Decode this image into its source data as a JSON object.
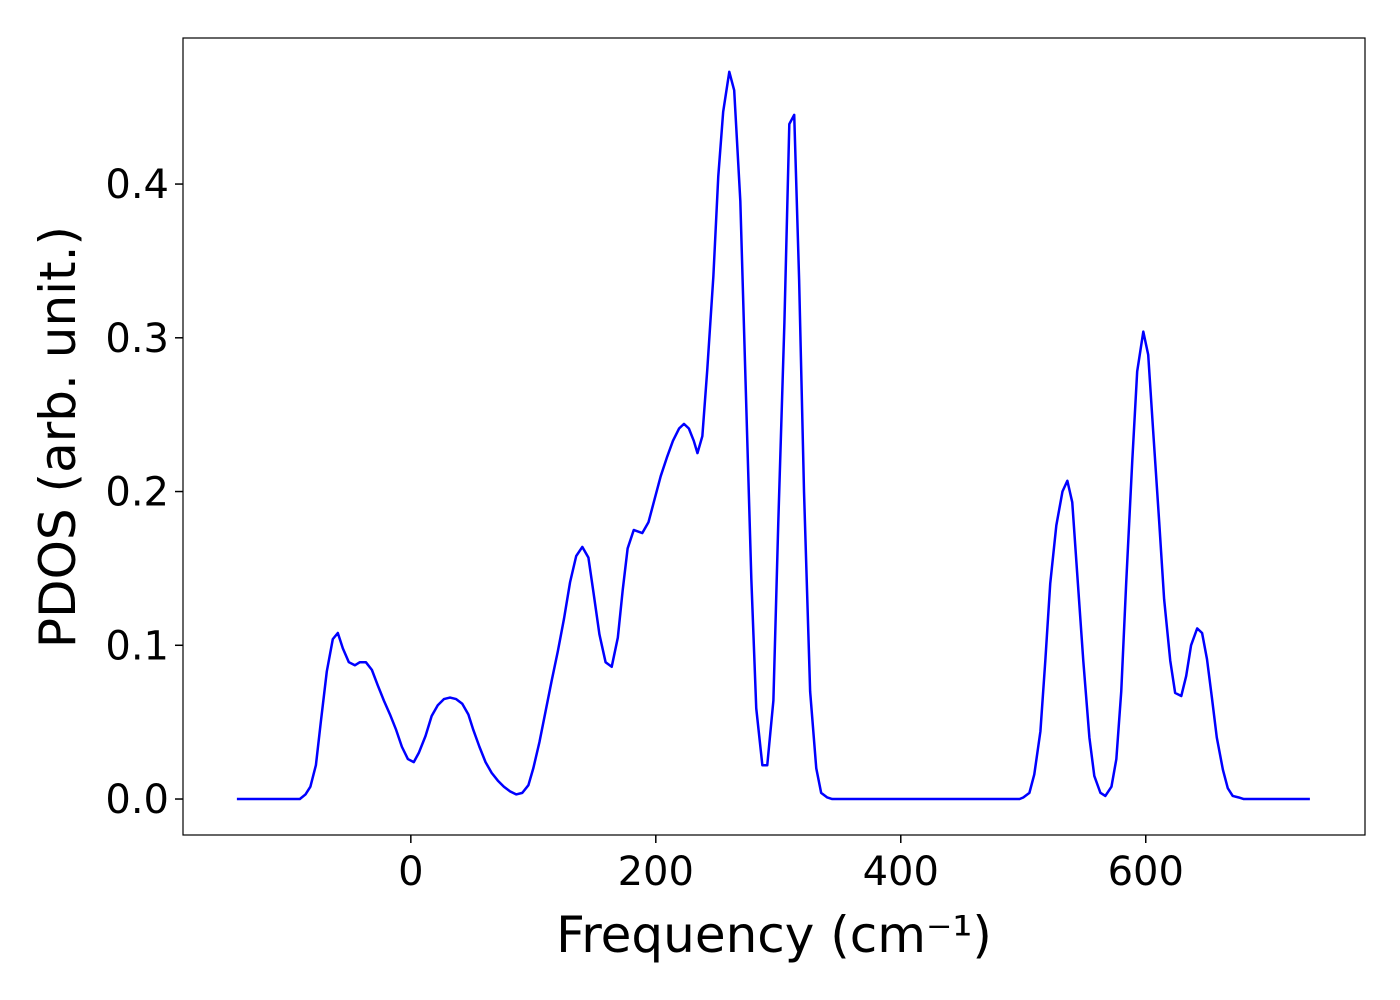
{
  "chart_data": {
    "type": "line",
    "xlabel": "Frequency (cm⁻¹)",
    "ylabel": "PDOS (arb. unit.)",
    "xlim": [
      -186,
      779
    ],
    "ylim": [
      -0.0234,
      0.495
    ],
    "xticks": [
      0,
      200,
      400,
      600
    ],
    "yticks": [
      {
        "value": 0,
        "label": "0.0"
      },
      0.1,
      0.2,
      0.3,
      0.4
    ],
    "series": [
      {
        "color": "#0000ff",
        "x": [
          -142,
          -90.6,
          -86,
          -82,
          -77.5,
          -73.5,
          -68.6,
          -63.7,
          -59.6,
          -55.5,
          -50.6,
          -45.7,
          -41.6,
          -36.7,
          -31.8,
          -27,
          -22,
          -17,
          -12,
          -7.3,
          -2.4,
          2.4,
          6.5,
          12,
          17,
          22,
          27,
          32,
          37,
          42,
          47,
          51,
          56,
          61,
          66,
          71,
          76,
          81,
          86,
          91,
          96,
          100,
          105,
          110,
          115,
          120,
          125,
          130,
          135,
          140,
          145,
          149,
          154,
          159,
          164,
          169,
          173,
          177,
          182,
          189,
          194,
          199,
          204,
          209,
          214,
          219,
          223,
          227,
          231,
          234,
          238,
          242,
          247,
          251,
          255,
          260,
          264,
          269,
          273,
          278,
          282,
          287,
          291,
          296,
          300,
          305,
          309,
          313,
          317,
          321,
          326,
          331,
          335,
          340,
          344,
          497,
          500,
          505,
          509,
          514,
          518,
          522,
          527,
          532,
          536,
          540,
          544,
          549,
          554,
          558,
          563,
          567,
          572,
          576,
          580,
          584,
          589,
          593,
          598,
          602,
          606,
          611,
          615,
          620,
          624,
          629,
          633,
          637,
          642,
          646,
          650,
          654,
          658,
          663,
          667,
          671,
          676,
          680,
          734
        ],
        "values": [
          0,
          0,
          0.003,
          0.008,
          0.022,
          0.05,
          0.083,
          0.104,
          0.108,
          0.098,
          0.089,
          0.087,
          0.089,
          0.089,
          0.084,
          0.074,
          0.064,
          0.055,
          0.045,
          0.034,
          0.026,
          0.024,
          0.03,
          0.041,
          0.054,
          0.061,
          0.065,
          0.066,
          0.065,
          0.062,
          0.055,
          0.045,
          0.034,
          0.024,
          0.017,
          0.012,
          0.008,
          0.005,
          0.003,
          0.004,
          0.009,
          0.02,
          0.037,
          0.057,
          0.077,
          0.096,
          0.117,
          0.141,
          0.158,
          0.164,
          0.157,
          0.135,
          0.107,
          0.089,
          0.086,
          0.105,
          0.136,
          0.163,
          0.175,
          0.173,
          0.18,
          0.195,
          0.21,
          0.222,
          0.233,
          0.241,
          0.244,
          0.241,
          0.233,
          0.225,
          0.236,
          0.279,
          0.34,
          0.405,
          0.447,
          0.473,
          0.461,
          0.389,
          0.279,
          0.143,
          0.059,
          0.022,
          0.022,
          0.064,
          0.18,
          0.31,
          0.439,
          0.445,
          0.338,
          0.2,
          0.07,
          0.02,
          0.004,
          0.001,
          0,
          0,
          0.001,
          0.004,
          0.016,
          0.044,
          0.09,
          0.14,
          0.178,
          0.2,
          0.207,
          0.193,
          0.147,
          0.09,
          0.04,
          0.015,
          0.004,
          0.002,
          0.008,
          0.026,
          0.07,
          0.14,
          0.22,
          0.278,
          0.304,
          0.289,
          0.24,
          0.18,
          0.13,
          0.09,
          0.069,
          0.067,
          0.08,
          0.1,
          0.111,
          0.108,
          0.091,
          0.066,
          0.04,
          0.019,
          0.007,
          0.002,
          0.001,
          0,
          0
        ]
      }
    ]
  }
}
